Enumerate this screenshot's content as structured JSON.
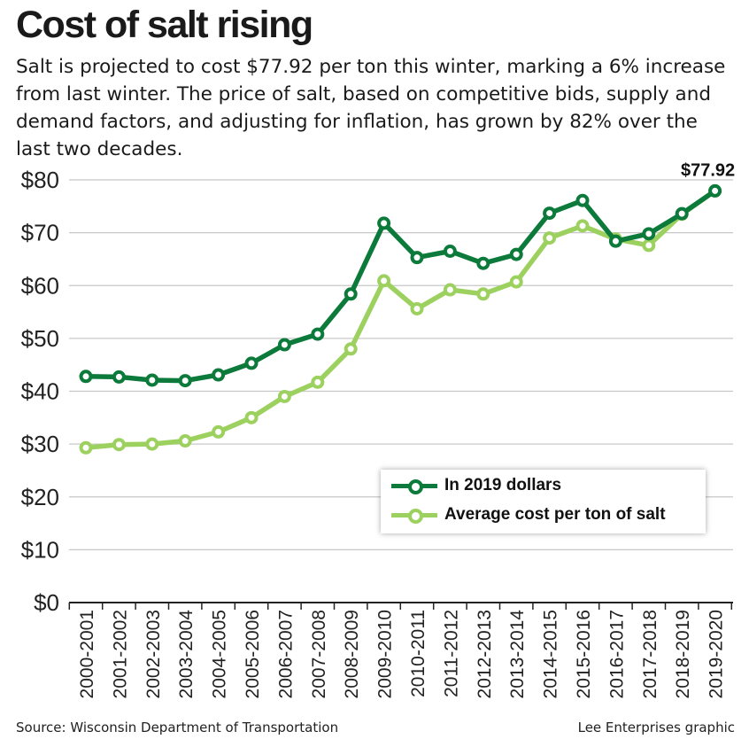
{
  "header": {
    "title": "Cost of salt rising",
    "subtitle": "Salt is projected to cost $77.92 per ton this winter, marking a 6% increase from last winter. The price of salt, based on competitive bids, supply and demand factors, and adjusting for inflation, has grown by 82% over the last two decades."
  },
  "footer": {
    "source": "Source: Wisconsin Department of Transportation",
    "credit": "Lee Enterprises graphic"
  },
  "chart_data": {
    "type": "line",
    "categories": [
      "2000-2001",
      "2001-2002",
      "2002-2003",
      "2003-2004",
      "2004-2005",
      "2005-2006",
      "2006-2007",
      "2007-2008",
      "2008-2009",
      "2009-2010",
      "2010-2011",
      "2011-2012",
      "2012-2013",
      "2013-2014",
      "2014-2015",
      "2015-2016",
      "2016-2017",
      "2017-2018",
      "2018-2019",
      "2019-2020"
    ],
    "y_ticks": [
      "$0",
      "$10",
      "$20",
      "$30",
      "$40",
      "$50",
      "$60",
      "$70",
      "$80"
    ],
    "ylim": [
      0,
      80
    ],
    "grid": true,
    "legend_position": "bottom-right",
    "annotation": "$77.92",
    "series": [
      {
        "name": "In 2019 dollars",
        "color": "#0c7a3a",
        "values": [
          42.8,
          42.7,
          42.1,
          42.0,
          43.1,
          45.3,
          48.8,
          50.8,
          58.4,
          71.8,
          65.3,
          66.5,
          64.2,
          65.9,
          73.7,
          76.1,
          68.4,
          69.8,
          73.6,
          77.92
        ]
      },
      {
        "name": "Average cost per ton of salt",
        "color": "#9dd15f",
        "values": [
          29.3,
          29.9,
          30.0,
          30.6,
          32.3,
          35.0,
          39.0,
          41.7,
          48.0,
          60.9,
          55.6,
          59.2,
          58.4,
          60.7,
          69.0,
          71.3,
          68.8,
          67.6,
          73.5,
          77.92
        ]
      }
    ]
  }
}
